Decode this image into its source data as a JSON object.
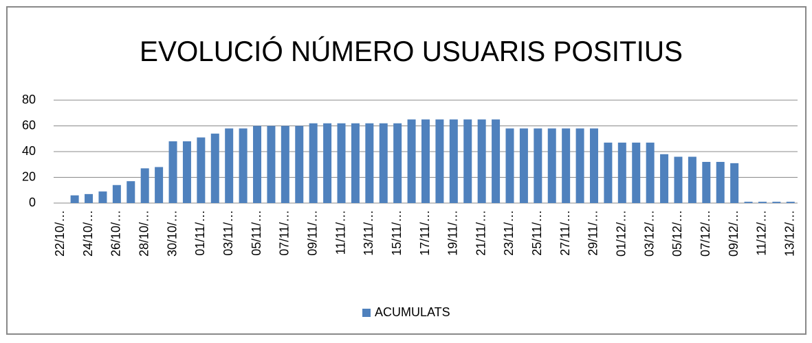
{
  "chart_data": {
    "type": "bar",
    "title": "EVOLUCIÓ NÚMERO USUARIS POSITIUS",
    "categories": [
      "22/10/…",
      null,
      "24/10/…",
      null,
      "26/10/…",
      null,
      "28/10/…",
      null,
      "30/10/…",
      null,
      "01/11/…",
      null,
      "03/11/…",
      null,
      "05/11/…",
      null,
      "07/11/…",
      null,
      "09/11/…",
      null,
      "11/11/…",
      null,
      "13/11/…",
      null,
      "15/11/…",
      null,
      "17/11/…",
      null,
      "19/11/…",
      null,
      "21/11/…",
      null,
      "23/11/…",
      null,
      "25/11/…",
      null,
      "27/11/…",
      null,
      "29/11/…",
      null,
      "01/12/…",
      null,
      "03/12/…",
      null,
      "05/12/…",
      null,
      "07/12/…",
      null,
      "09/12/…",
      null,
      "11/12/…",
      null,
      "13/12/…"
    ],
    "series": [
      {
        "name": "ACUMULATS",
        "color": "#4f81bd",
        "values": [
          0,
          6,
          7,
          9,
          14,
          17,
          27,
          28,
          48,
          48,
          51,
          54,
          58,
          58,
          60,
          60,
          60,
          60,
          62,
          62,
          62,
          62,
          62,
          62,
          62,
          65,
          65,
          65,
          65,
          65,
          65,
          65,
          58,
          58,
          58,
          58,
          58,
          58,
          58,
          47,
          47,
          47,
          47,
          38,
          36,
          36,
          32,
          32,
          31,
          1,
          1,
          1,
          1
        ]
      }
    ],
    "ylim": [
      0,
      80
    ],
    "yticks": [
      0,
      20,
      40,
      60,
      80
    ],
    "grid": true
  }
}
